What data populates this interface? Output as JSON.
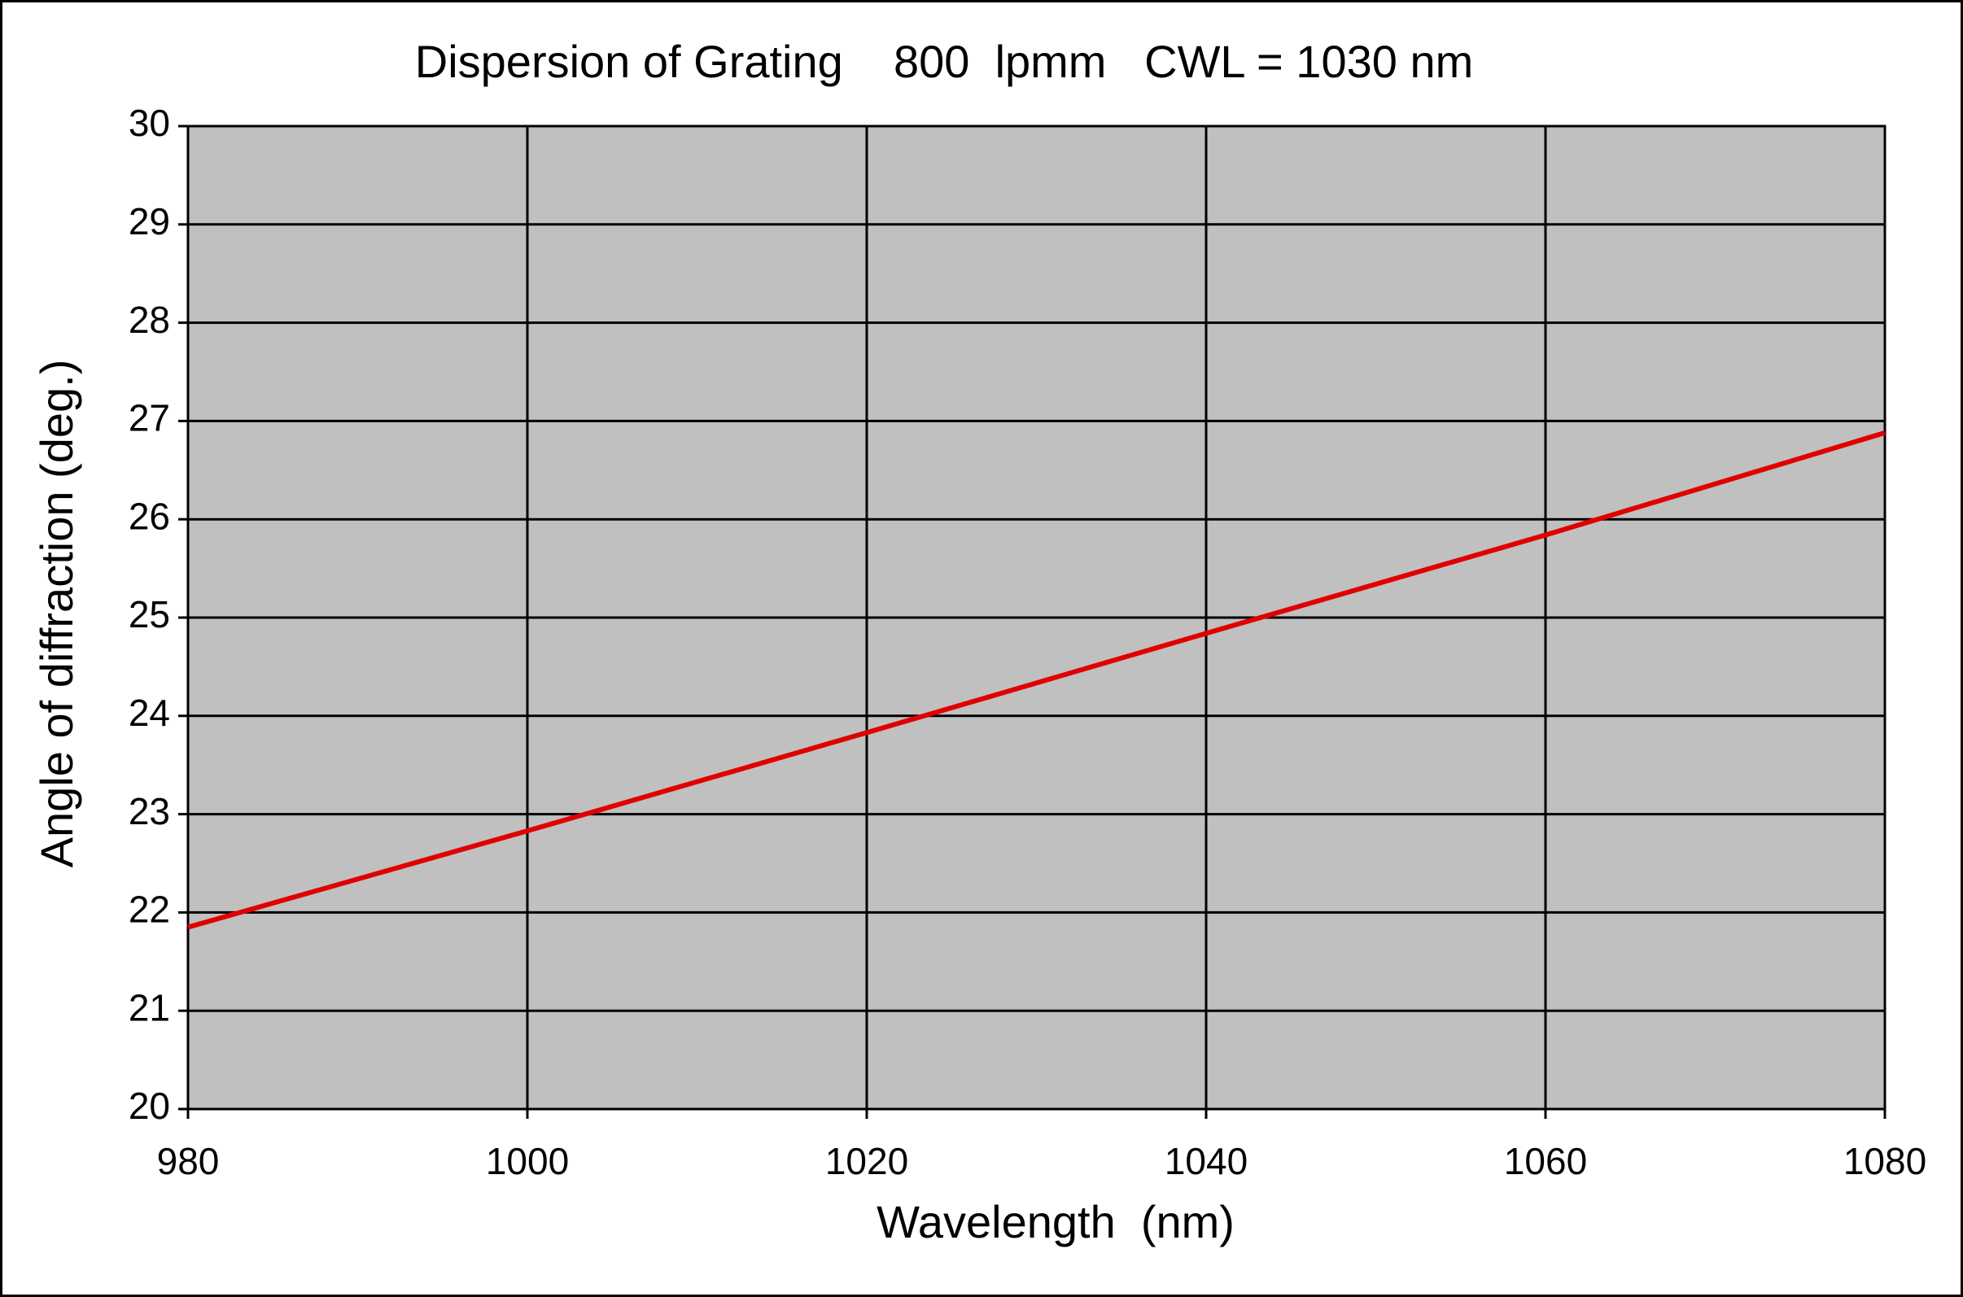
{
  "chart_data": {
    "type": "line",
    "title": "Dispersion of Grating    800  lpmm   CWL = 1030 nm",
    "x_label": "Wavelength  (nm)",
    "y_label": "Angle of diffraction (deg.)",
    "x": [
      980,
      1000,
      1020,
      1040,
      1060,
      1080
    ],
    "series": [
      {
        "color": "#e00000",
        "values": [
          21.85,
          22.83,
          23.83,
          24.84,
          25.84,
          26.88
        ]
      }
    ],
    "xlim": [
      980,
      1080
    ],
    "xticks": [
      980,
      1000,
      1020,
      1040,
      1060,
      1080
    ],
    "ylim": [
      20,
      30
    ],
    "yticks": [
      20,
      21,
      22,
      23,
      24,
      25,
      26,
      27,
      28,
      29,
      30
    ],
    "grid": true,
    "plot_background": "#c0c0c0"
  }
}
